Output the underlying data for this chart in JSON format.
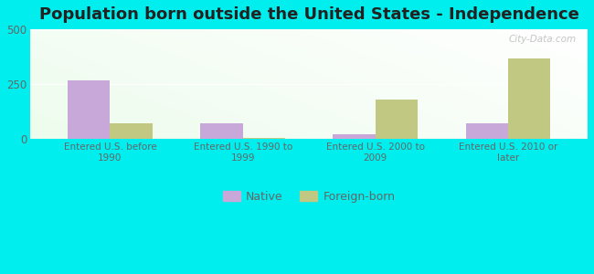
{
  "title": "Population born outside the United States - Independence",
  "categories": [
    "Entered U.S. before\n1990",
    "Entered U.S. 1990 to\n1999",
    "Entered U.S. 2000 to\n2009",
    "Entered U.S. 2010 or\nlater"
  ],
  "native_values": [
    265,
    70,
    22,
    72
  ],
  "foreign_born_values": [
    72,
    4,
    178,
    365
  ],
  "native_color": "#c8a8d8",
  "foreign_born_color": "#c0c882",
  "background_color": "#00eeee",
  "ylim": [
    0,
    500
  ],
  "yticks": [
    0,
    250,
    500
  ],
  "bar_width": 0.32,
  "title_fontsize": 13,
  "legend_labels": [
    "Native",
    "Foreign-born"
  ],
  "watermark": "City-Data.com",
  "grid_color": "#e0e8d8",
  "axis_label_color": "#666666"
}
